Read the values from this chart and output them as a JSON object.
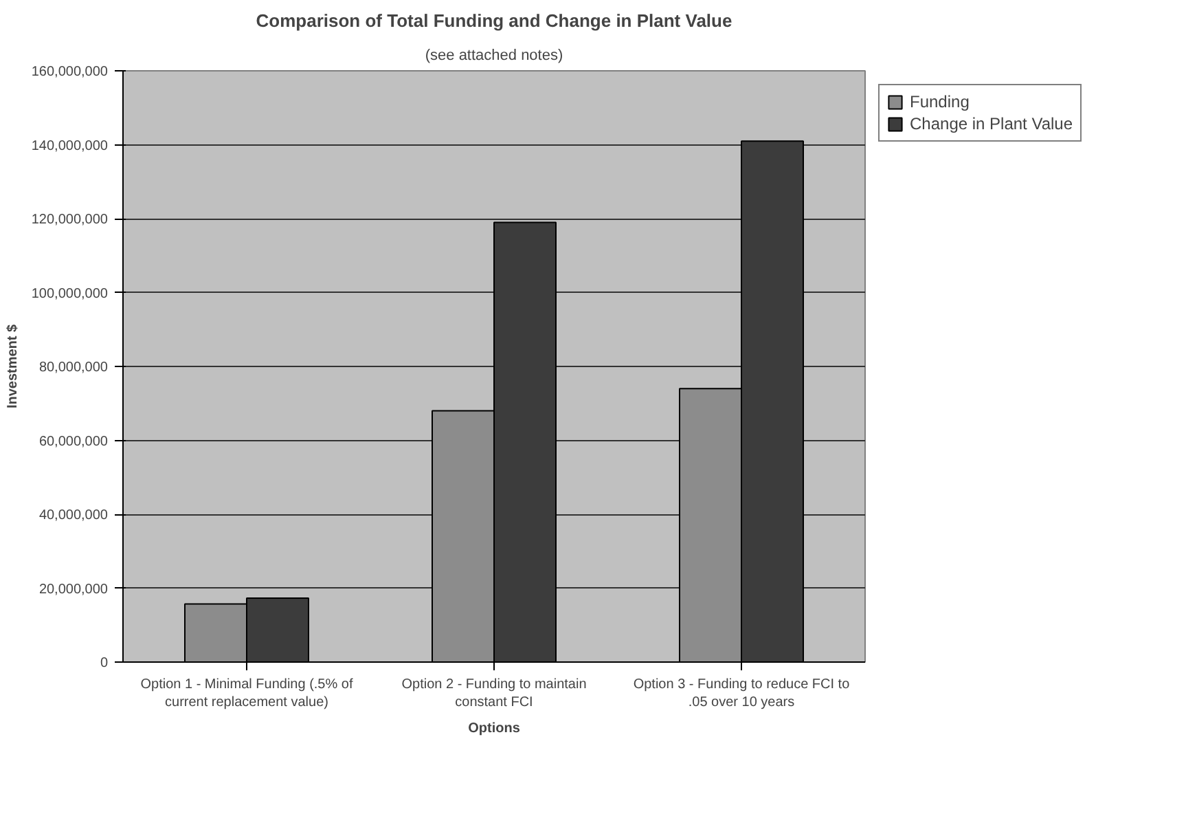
{
  "chart_data": {
    "type": "bar",
    "title": "Comparison of Total Funding and Change in Plant Value",
    "subtitle": "(see attached notes)",
    "xlabel": "Options",
    "ylabel": "Investment $",
    "categories": [
      "Option 1 - Minimal Funding (.5% of current replacement value)",
      "Option 2 - Funding to maintain constant FCI",
      "Option 3 - Funding to reduce FCI to .05 over 10 years"
    ],
    "series": [
      {
        "name": "Funding",
        "color": "#8c8c8c",
        "values": [
          15700000,
          68000000,
          74000000
        ]
      },
      {
        "name": "Change in Plant Value",
        "color": "#3c3c3c",
        "values": [
          17300000,
          119000000,
          141000000
        ]
      }
    ],
    "ylim": [
      0,
      160000000
    ],
    "yticks": [
      {
        "value": 0,
        "label": "0"
      },
      {
        "value": 20000000,
        "label": "20,000,000"
      },
      {
        "value": 40000000,
        "label": "40,000,000"
      },
      {
        "value": 60000000,
        "label": "60,000,000"
      },
      {
        "value": 80000000,
        "label": "80,000,000"
      },
      {
        "value": 100000000,
        "label": "100,000,000"
      },
      {
        "value": 120000000,
        "label": "120,000,000"
      },
      {
        "value": 140000000,
        "label": "140,000,000"
      },
      {
        "value": 160000000,
        "label": "160,000,000"
      }
    ],
    "grid": "y",
    "legend": "top right"
  }
}
